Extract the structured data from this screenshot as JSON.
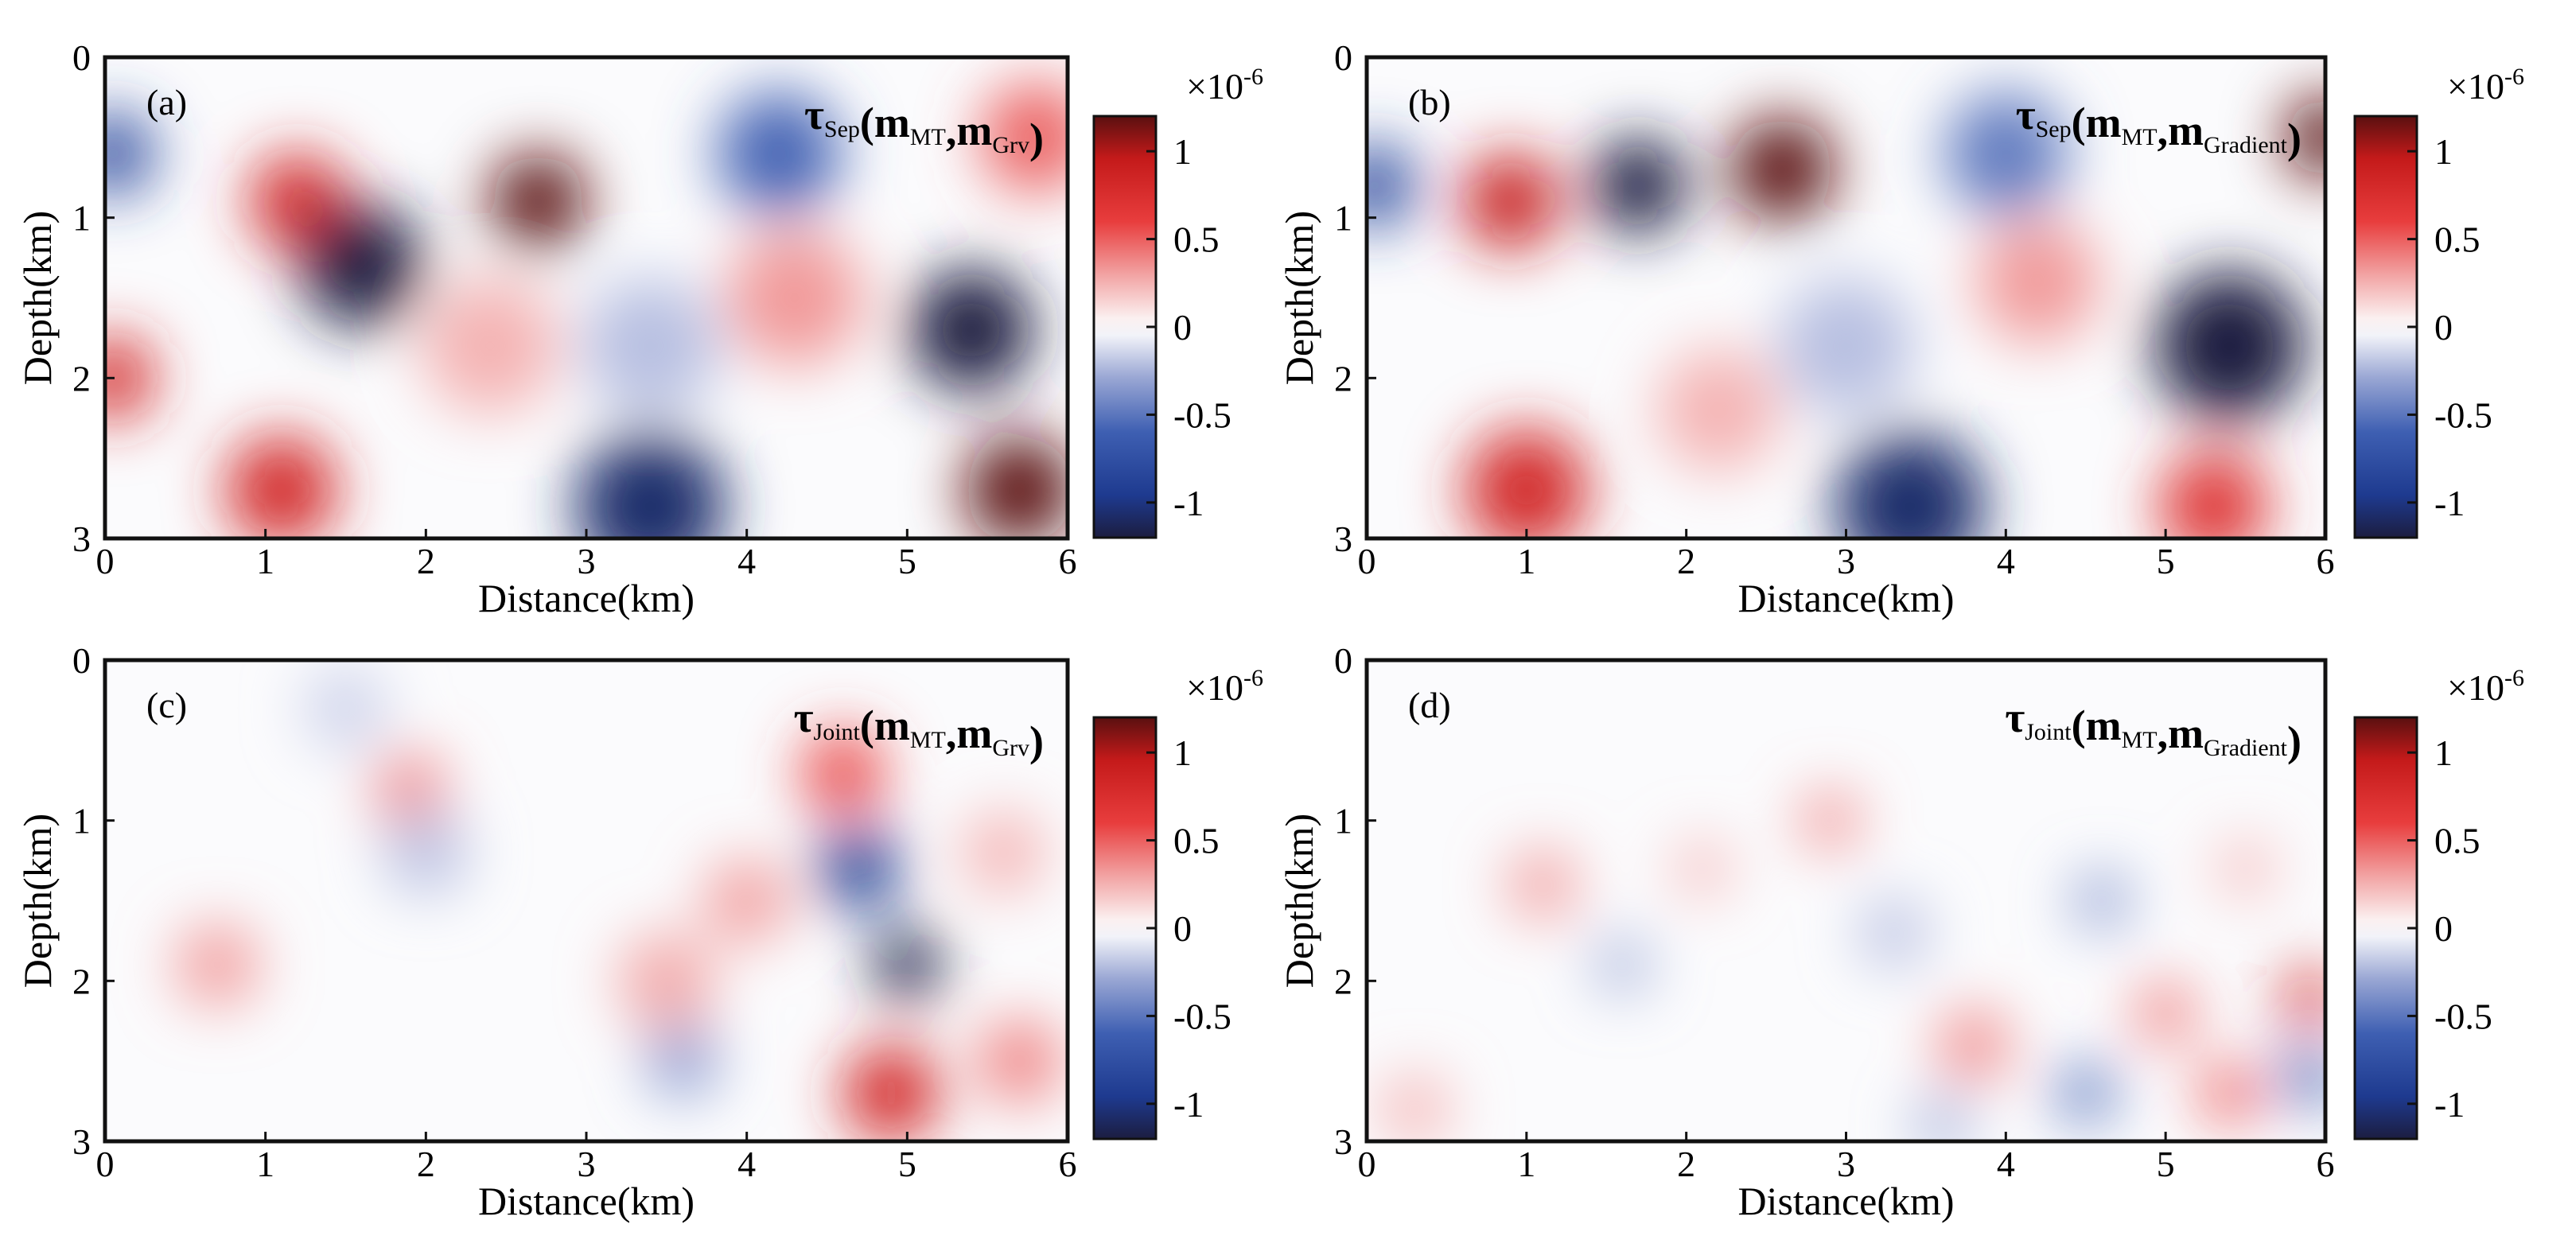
{
  "chart_data": [
    {
      "type": "heatmap",
      "panel_label": "(a)",
      "title": {
        "symbol": "τ",
        "kind": "Sep",
        "m1": "MT",
        "m2": "Grv"
      },
      "xlabel": "Distance(km)",
      "ylabel": "Depth(km)",
      "xlim": [
        0,
        6
      ],
      "ylim": [
        0,
        3
      ],
      "xticks": [
        "0",
        "1",
        "2",
        "3",
        "4",
        "5",
        "6"
      ],
      "yticks": [
        "0",
        "1",
        "2",
        "3"
      ],
      "colorbar": {
        "label": "×10",
        "exponent": "-6",
        "range": [
          -1.2,
          1.2
        ],
        "ticks": [
          "1",
          "0.5",
          "0",
          "-0.5",
          "-1"
        ],
        "tick_values": [
          1,
          0.5,
          0,
          -0.5,
          -1
        ]
      },
      "blobs": [
        {
          "x": 1.2,
          "y": 0.9,
          "v": 0.9,
          "s": 0.35
        },
        {
          "x": 1.6,
          "y": 1.3,
          "v": -1.2,
          "s": 0.45
        },
        {
          "x": 2.7,
          "y": 0.9,
          "v": 1.2,
          "s": 0.35
        },
        {
          "x": 4.2,
          "y": 0.6,
          "v": -0.7,
          "s": 0.45
        },
        {
          "x": 5.4,
          "y": 1.7,
          "v": -1.2,
          "s": 0.45
        },
        {
          "x": 5.7,
          "y": 2.7,
          "v": 1.2,
          "s": 0.4
        },
        {
          "x": 3.4,
          "y": 2.8,
          "v": -1.1,
          "s": 0.55
        },
        {
          "x": 1.1,
          "y": 2.7,
          "v": 0.9,
          "s": 0.4
        },
        {
          "x": 0.05,
          "y": 0.6,
          "v": -0.9,
          "s": 0.3
        },
        {
          "x": 0.05,
          "y": 2.0,
          "v": 0.9,
          "s": 0.3
        },
        {
          "x": 4.3,
          "y": 1.5,
          "v": 0.4,
          "s": 0.5
        },
        {
          "x": 5.8,
          "y": 0.5,
          "v": 0.6,
          "s": 0.4
        },
        {
          "x": 2.4,
          "y": 1.8,
          "v": 0.3,
          "s": 0.5
        },
        {
          "x": 3.4,
          "y": 1.8,
          "v": -0.3,
          "s": 0.5
        }
      ]
    },
    {
      "type": "heatmap",
      "panel_label": "(b)",
      "title": {
        "symbol": "τ",
        "kind": "Sep",
        "m1": "MT",
        "m2": "Gradient"
      },
      "xlabel": "Distance(km)",
      "ylabel": "Depth(km)",
      "xlim": [
        0,
        6
      ],
      "ylim": [
        0,
        3
      ],
      "xticks": [
        "0",
        "1",
        "2",
        "3",
        "4",
        "5",
        "6"
      ],
      "yticks": [
        "0",
        "1",
        "2",
        "3"
      ],
      "colorbar": {
        "label": "×10",
        "exponent": "-6",
        "range": [
          -1.2,
          1.2
        ],
        "ticks": [
          "1",
          "0.5",
          "0",
          "-0.5",
          "-1"
        ],
        "tick_values": [
          1,
          0.5,
          0,
          -0.5,
          -1
        ]
      },
      "blobs": [
        {
          "x": 0.9,
          "y": 0.9,
          "v": 1.0,
          "s": 0.35
        },
        {
          "x": 1.7,
          "y": 0.8,
          "v": -1.2,
          "s": 0.35
        },
        {
          "x": 2.6,
          "y": 0.7,
          "v": 1.2,
          "s": 0.38
        },
        {
          "x": 4.0,
          "y": 0.6,
          "v": -0.6,
          "s": 0.45
        },
        {
          "x": 5.4,
          "y": 1.8,
          "v": -1.2,
          "s": 0.55
        },
        {
          "x": 3.4,
          "y": 2.8,
          "v": -1.1,
          "s": 0.55
        },
        {
          "x": 1.0,
          "y": 2.7,
          "v": 0.9,
          "s": 0.45
        },
        {
          "x": 5.3,
          "y": 2.8,
          "v": 0.8,
          "s": 0.4
        },
        {
          "x": 6.0,
          "y": 0.5,
          "v": 1.2,
          "s": 0.3
        },
        {
          "x": 0.05,
          "y": 0.8,
          "v": -0.9,
          "s": 0.3
        },
        {
          "x": 4.2,
          "y": 1.4,
          "v": 0.4,
          "s": 0.45
        },
        {
          "x": 3.0,
          "y": 1.8,
          "v": -0.3,
          "s": 0.5
        },
        {
          "x": 2.2,
          "y": 2.2,
          "v": 0.3,
          "s": 0.45
        }
      ]
    },
    {
      "type": "heatmap",
      "panel_label": "(c)",
      "title": {
        "symbol": "τ",
        "kind": "Joint",
        "m1": "MT",
        "m2": "Grv"
      },
      "xlabel": "Distance(km)",
      "ylabel": "Depth(km)",
      "xlim": [
        0,
        6
      ],
      "ylim": [
        0,
        3
      ],
      "xticks": [
        "0",
        "1",
        "2",
        "3",
        "4",
        "5",
        "6"
      ],
      "yticks": [
        "0",
        "1",
        "2",
        "3"
      ],
      "colorbar": {
        "label": "×10",
        "exponent": "-6",
        "range": [
          -1.2,
          1.2
        ],
        "ticks": [
          "1",
          "0.5",
          "0",
          "-0.5",
          "-1"
        ],
        "tick_values": [
          1,
          0.5,
          0,
          -0.5,
          -1
        ]
      },
      "blobs": [
        {
          "x": 4.7,
          "y": 1.3,
          "v": -1.0,
          "s": 0.3
        },
        {
          "x": 5.0,
          "y": 1.9,
          "v": -1.2,
          "s": 0.25
        },
        {
          "x": 4.6,
          "y": 0.7,
          "v": 0.7,
          "s": 0.3
        },
        {
          "x": 4.9,
          "y": 2.7,
          "v": 0.9,
          "s": 0.35
        },
        {
          "x": 0.7,
          "y": 1.9,
          "v": 0.4,
          "s": 0.3
        },
        {
          "x": 1.9,
          "y": 0.8,
          "v": 0.5,
          "s": 0.25
        },
        {
          "x": 3.5,
          "y": 2.0,
          "v": 0.35,
          "s": 0.35
        },
        {
          "x": 3.6,
          "y": 2.5,
          "v": -0.5,
          "s": 0.25
        },
        {
          "x": 2.0,
          "y": 1.2,
          "v": -0.3,
          "s": 0.3
        },
        {
          "x": 5.6,
          "y": 1.2,
          "v": 0.3,
          "s": 0.3
        },
        {
          "x": 5.7,
          "y": 2.5,
          "v": 0.5,
          "s": 0.3
        },
        {
          "x": 1.5,
          "y": 0.3,
          "v": -0.2,
          "s": 0.3
        },
        {
          "x": 4.0,
          "y": 1.5,
          "v": 0.4,
          "s": 0.3
        }
      ]
    },
    {
      "type": "heatmap",
      "panel_label": "(d)",
      "title": {
        "symbol": "τ",
        "kind": "Joint",
        "m1": "MT",
        "m2": "Gradient"
      },
      "xlabel": "Distance(km)",
      "ylabel": "Depth(km)",
      "xlim": [
        0,
        6
      ],
      "ylim": [
        0,
        3
      ],
      "xticks": [
        "0",
        "1",
        "2",
        "3",
        "4",
        "5",
        "6"
      ],
      "yticks": [
        "0",
        "1",
        "2",
        "3"
      ],
      "colorbar": {
        "label": "×10",
        "exponent": "-6",
        "range": [
          -1.2,
          1.2
        ],
        "ticks": [
          "1",
          "0.5",
          "0",
          "-0.5",
          "-1"
        ],
        "tick_values": [
          1,
          0.5,
          0,
          -0.5,
          -1
        ]
      },
      "blobs": [
        {
          "x": 5.9,
          "y": 2.1,
          "v": 0.9,
          "s": 0.2
        },
        {
          "x": 5.9,
          "y": 2.6,
          "v": -0.8,
          "s": 0.2
        },
        {
          "x": 5.4,
          "y": 2.7,
          "v": 0.7,
          "s": 0.2
        },
        {
          "x": 5.0,
          "y": 2.2,
          "v": 0.6,
          "s": 0.2
        },
        {
          "x": 4.5,
          "y": 2.7,
          "v": -0.7,
          "s": 0.2
        },
        {
          "x": 4.6,
          "y": 1.5,
          "v": -0.5,
          "s": 0.2
        },
        {
          "x": 3.8,
          "y": 2.4,
          "v": 0.5,
          "s": 0.25
        },
        {
          "x": 2.9,
          "y": 1.0,
          "v": 0.5,
          "s": 0.2
        },
        {
          "x": 1.1,
          "y": 1.4,
          "v": 0.4,
          "s": 0.25
        },
        {
          "x": 1.6,
          "y": 1.9,
          "v": -0.4,
          "s": 0.2
        },
        {
          "x": 3.3,
          "y": 1.7,
          "v": -0.3,
          "s": 0.25
        },
        {
          "x": 2.1,
          "y": 1.3,
          "v": 0.3,
          "s": 0.2
        },
        {
          "x": 5.5,
          "y": 1.3,
          "v": 0.3,
          "s": 0.2
        },
        {
          "x": 0.3,
          "y": 2.8,
          "v": 0.3,
          "s": 0.25
        },
        {
          "x": 3.6,
          "y": 2.9,
          "v": -0.4,
          "s": 0.2
        }
      ]
    }
  ]
}
